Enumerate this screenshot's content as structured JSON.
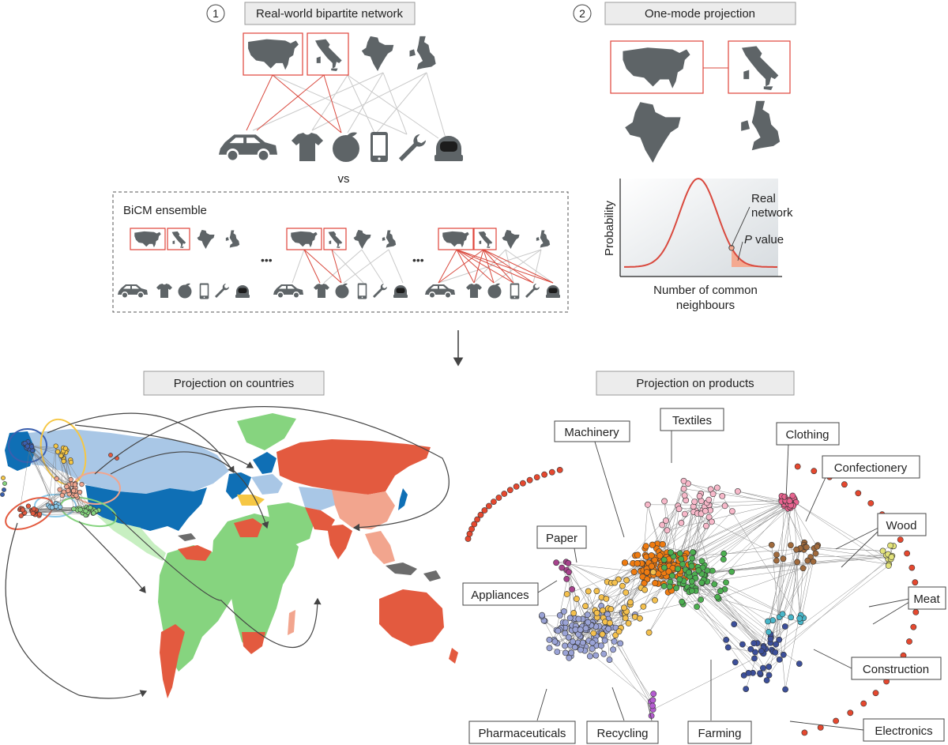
{
  "steps": {
    "step1": {
      "number": "1",
      "title": "Real-world bipartite network"
    },
    "step2": {
      "number": "2",
      "title": "One-mode projection"
    }
  },
  "vs_label": "vs",
  "ensemble": {
    "title": "BiCM ensemble",
    "ellipsis": "•••"
  },
  "icons": {
    "countries": [
      "usa-map-icon",
      "italy-map-icon",
      "india-map-icon",
      "uk-map-icon"
    ],
    "products": [
      "car-icon",
      "tshirt-icon",
      "fruit-icon",
      "smartphone-icon",
      "wrench-icon",
      "astronaut-helmet-icon"
    ]
  },
  "distribution_plot": {
    "ylabel": "Probability",
    "xlabel_line1": "Number of common",
    "xlabel_line2": "neighbours",
    "annotation_real_line1": "Real",
    "annotation_real_line2": "network",
    "annotation_p_italic": "P",
    "annotation_p_rest": " value",
    "colors": {
      "curve": "#d9493e",
      "tail": "#f4a990"
    }
  },
  "panels": {
    "countries_title": "Projection on countries",
    "products_title": "Projection on products"
  },
  "product_labels": [
    "Machinery",
    "Textiles",
    "Clothing",
    "Confectionery",
    "Paper",
    "Wood",
    "Appliances",
    "Meat",
    "Construction",
    "Pharmaceuticals",
    "Recycling",
    "Farming",
    "Electronics"
  ],
  "colors": {
    "icon_grey": "#5e6467",
    "red_edge": "#d9493e",
    "grey_edge": "#c9c9c9",
    "map_blue_dark": "#0f6fb5",
    "map_blue_light": "#a9c7e6",
    "map_green": "#86d47f",
    "map_red": "#e35a3f",
    "map_salmon": "#f2a58e",
    "map_yellow": "#f6c744",
    "map_grey": "#6c6c6c"
  }
}
